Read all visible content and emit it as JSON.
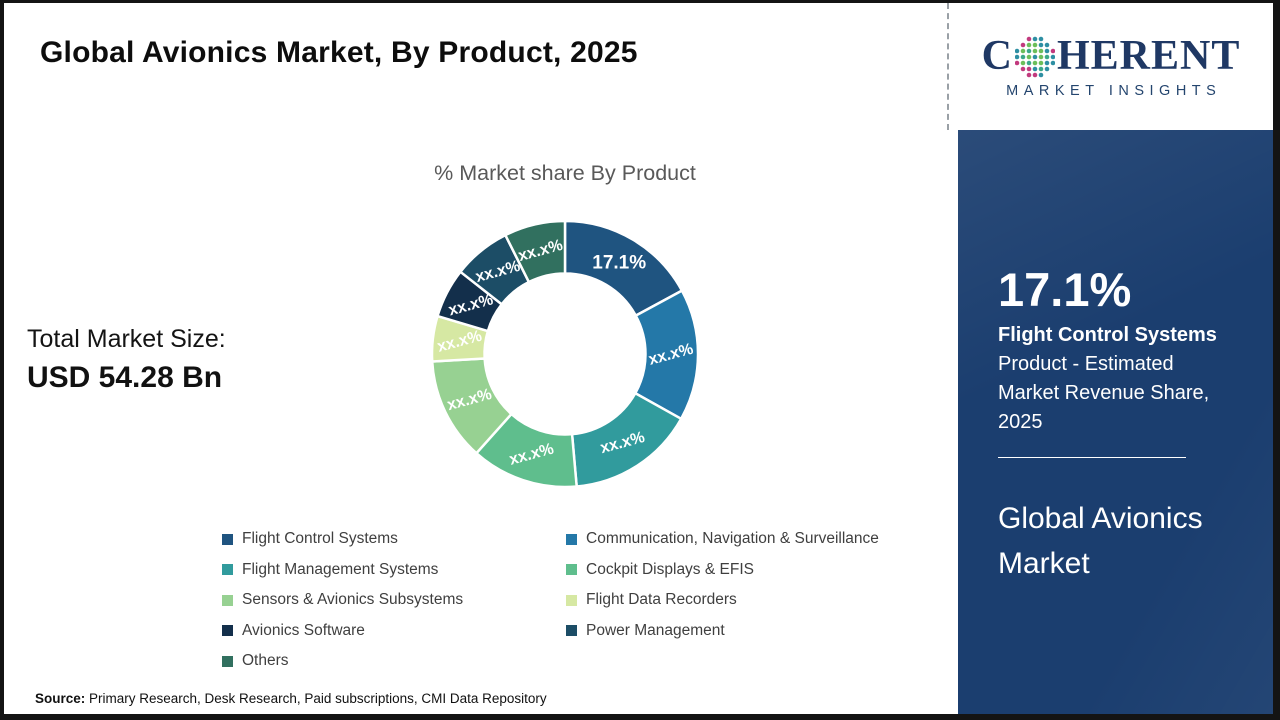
{
  "page": {
    "title": "Global Avionics Market, By Product, 2025",
    "source_label": "Source:",
    "source_text": " Primary Research, Desk Research, Paid subscriptions, CMI Data Repository"
  },
  "total_market": {
    "label": "Total Market Size:",
    "value": "USD 54.28 Bn"
  },
  "logo": {
    "brand_prefix": "C",
    "brand_suffix": "HERENT",
    "subtitle": "MARKET INSIGHTS",
    "brand_color": "#1f3864"
  },
  "sidebar": {
    "stat_value": "17.1%",
    "stat_segment": "Flight Control Systems",
    "stat_description": "Product - Estimated Market Revenue Share, 2025",
    "panel_title": "Global Avionics Market",
    "background_color": "#1b3e6f",
    "text_color": "#ffffff"
  },
  "chart_data": {
    "type": "pie",
    "subtype": "donut",
    "title": "% Market share By Product",
    "start_angle_deg": 0,
    "direction": "clockwise",
    "legend_position": "bottom",
    "label_color": "#ffffff",
    "series": [
      {
        "label": "Flight Control Systems",
        "value_label": "17.1%",
        "estimated_percent": 17.1,
        "color": "#1f5480"
      },
      {
        "label": "Communication, Navigation & Surveillance",
        "value_label": "xx.x%",
        "estimated_percent": 16.0,
        "color": "#2478a8"
      },
      {
        "label": "Flight Management Systems",
        "value_label": "xx.x%",
        "estimated_percent": 15.5,
        "color": "#319b9d"
      },
      {
        "label": "Cockpit Displays & EFIS",
        "value_label": "xx.x%",
        "estimated_percent": 13.0,
        "color": "#5fbe8d"
      },
      {
        "label": "Sensors & Avionics Subsystems",
        "value_label": "xx.x%",
        "estimated_percent": 12.5,
        "color": "#97d192"
      },
      {
        "label": "Flight Data Recorders",
        "value_label": "xx.x%",
        "estimated_percent": 5.5,
        "color": "#d6e8a3"
      },
      {
        "label": "Avionics Software",
        "value_label": "xx.x%",
        "estimated_percent": 6.0,
        "color": "#132f4b"
      },
      {
        "label": "Power Management",
        "value_label": "xx.x%",
        "estimated_percent": 7.0,
        "color": "#1c4d66"
      },
      {
        "label": "Others",
        "value_label": "xx.x%",
        "estimated_percent": 7.4,
        "color": "#31705f"
      }
    ]
  }
}
